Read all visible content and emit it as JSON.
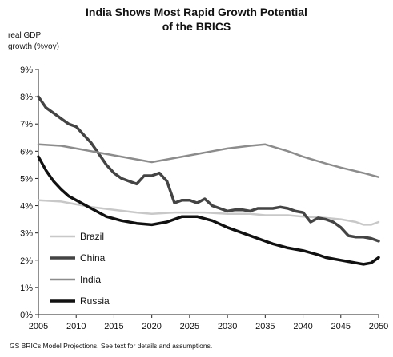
{
  "chart_data": {
    "type": "line",
    "title_lines": [
      "India Shows Most Rapid Growth Potential",
      "of the BRICS"
    ],
    "ylabel_lines": [
      "real GDP",
      "growth (%yoy)"
    ],
    "source": "GS BRICs Model Projections. See text for details and assumptions.",
    "xlim": [
      2005,
      2050
    ],
    "ylim": [
      0,
      9
    ],
    "x_ticks": [
      2005,
      2010,
      2015,
      2020,
      2025,
      2030,
      2035,
      2040,
      2045,
      2050
    ],
    "y_ticks": [
      "0%",
      "1%",
      "2%",
      "3%",
      "4%",
      "5%",
      "6%",
      "7%",
      "8%",
      "9%"
    ],
    "legend_position": "bottom-left",
    "series": [
      {
        "name": "Brazil",
        "color": "#c8c8c8",
        "width": 2.5,
        "x": [
          2005,
          2008,
          2010,
          2012,
          2015,
          2018,
          2020,
          2023,
          2025,
          2027,
          2030,
          2033,
          2035,
          2038,
          2040,
          2043,
          2045,
          2047,
          2048,
          2049,
          2050
        ],
        "y": [
          4.2,
          4.15,
          4.05,
          3.95,
          3.85,
          3.75,
          3.7,
          3.75,
          3.75,
          3.75,
          3.7,
          3.7,
          3.65,
          3.65,
          3.6,
          3.55,
          3.5,
          3.4,
          3.3,
          3.3,
          3.4
        ]
      },
      {
        "name": "China",
        "color": "#444444",
        "width": 3.5,
        "x": [
          2005,
          2006,
          2007,
          2008,
          2009,
          2010,
          2011,
          2012,
          2013,
          2014,
          2015,
          2016,
          2017,
          2018,
          2019,
          2020,
          2021,
          2022,
          2023,
          2024,
          2025,
          2026,
          2027,
          2028,
          2029,
          2030,
          2031,
          2032,
          2033,
          2034,
          2035,
          2036,
          2037,
          2038,
          2039,
          2040,
          2041,
          2042,
          2043,
          2044,
          2045,
          2046,
          2047,
          2048,
          2049,
          2050
        ],
        "y": [
          8.0,
          7.6,
          7.4,
          7.2,
          7.0,
          6.9,
          6.6,
          6.3,
          5.9,
          5.5,
          5.2,
          5.0,
          4.9,
          4.8,
          5.1,
          5.1,
          5.2,
          4.9,
          4.1,
          4.2,
          4.2,
          4.1,
          4.25,
          4.0,
          3.9,
          3.8,
          3.85,
          3.85,
          3.8,
          3.9,
          3.9,
          3.9,
          3.95,
          3.9,
          3.8,
          3.75,
          3.4,
          3.55,
          3.5,
          3.4,
          3.2,
          2.9,
          2.85,
          2.85,
          2.8,
          2.7
        ]
      },
      {
        "name": "India",
        "color": "#8c8c8c",
        "width": 2.5,
        "x": [
          2005,
          2008,
          2010,
          2012,
          2015,
          2018,
          2020,
          2022,
          2025,
          2028,
          2030,
          2033,
          2035,
          2038,
          2040,
          2043,
          2045,
          2048,
          2050
        ],
        "y": [
          6.25,
          6.2,
          6.1,
          6.0,
          5.85,
          5.7,
          5.6,
          5.7,
          5.85,
          6.0,
          6.1,
          6.2,
          6.25,
          6.0,
          5.8,
          5.55,
          5.4,
          5.2,
          5.05
        ]
      },
      {
        "name": "Russia",
        "color": "#111111",
        "width": 3.5,
        "x": [
          2005,
          2006,
          2007,
          2008,
          2009,
          2010,
          2012,
          2014,
          2016,
          2018,
          2020,
          2022,
          2024,
          2025,
          2026,
          2028,
          2030,
          2032,
          2034,
          2036,
          2038,
          2040,
          2042,
          2043,
          2044,
          2045,
          2046,
          2047,
          2048,
          2049,
          2050
        ],
        "y": [
          5.8,
          5.3,
          4.9,
          4.6,
          4.35,
          4.2,
          3.9,
          3.6,
          3.45,
          3.35,
          3.3,
          3.4,
          3.6,
          3.6,
          3.6,
          3.45,
          3.2,
          3.0,
          2.8,
          2.6,
          2.45,
          2.35,
          2.2,
          2.1,
          2.05,
          2.0,
          1.95,
          1.9,
          1.85,
          1.9,
          2.1
        ]
      }
    ]
  }
}
